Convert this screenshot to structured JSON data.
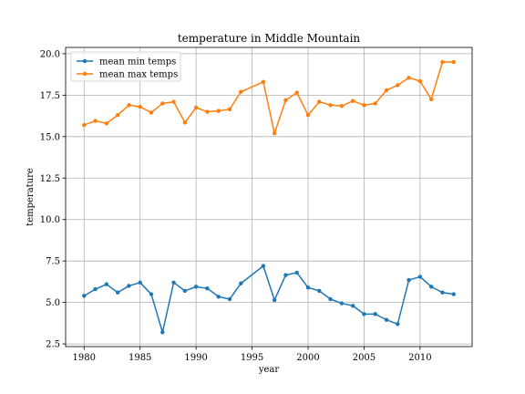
{
  "chart_data": {
    "type": "line",
    "title": "temperature in Middle Mountain",
    "xlabel": "year",
    "ylabel": "temperature",
    "xlim": [
      1978.35,
      2014.65
    ],
    "ylim": [
      2.34,
      20.38
    ],
    "xticks": [
      1980,
      1985,
      1990,
      1995,
      2000,
      2005,
      2010
    ],
    "yticks": [
      2.5,
      5.0,
      7.5,
      10.0,
      12.5,
      15.0,
      17.5,
      20.0
    ],
    "xtick_labels": [
      "1980",
      "1985",
      "1990",
      "1995",
      "2000",
      "2005",
      "2010"
    ],
    "ytick_labels": [
      "2.5",
      "5.0",
      "7.5",
      "10.0",
      "12.5",
      "15.0",
      "17.5",
      "20.0"
    ],
    "grid": true,
    "legend_position": "top-left",
    "series": [
      {
        "name": "mean min temps",
        "color": "#1f77b4",
        "points": [
          [
            1980,
            5.4
          ],
          [
            1981,
            5.8
          ],
          [
            1982,
            6.1
          ],
          [
            1983,
            5.6
          ],
          [
            1984,
            6.0
          ],
          [
            1985,
            6.2
          ],
          [
            1986,
            5.5
          ],
          [
            1987,
            3.2
          ],
          [
            1988,
            6.2
          ],
          [
            1989,
            5.7
          ],
          [
            1990,
            5.95
          ],
          [
            1991,
            5.85
          ],
          [
            1992,
            5.35
          ],
          [
            1993,
            5.2
          ],
          [
            1994,
            6.15
          ],
          [
            1996,
            7.2
          ],
          [
            1997,
            5.15
          ],
          [
            1998,
            6.65
          ],
          [
            1999,
            6.8
          ],
          [
            2000,
            5.9
          ],
          [
            2001,
            5.7
          ],
          [
            2002,
            5.2
          ],
          [
            2003,
            4.95
          ],
          [
            2004,
            4.8
          ],
          [
            2005,
            4.3
          ],
          [
            2006,
            4.3
          ],
          [
            2007,
            3.95
          ],
          [
            2008,
            3.7
          ],
          [
            2009,
            6.35
          ],
          [
            2010,
            6.55
          ],
          [
            2011,
            5.95
          ],
          [
            2012,
            5.6
          ],
          [
            2013,
            5.5
          ]
        ]
      },
      {
        "name": "mean max temps",
        "color": "#ff7f0e",
        "points": [
          [
            1980,
            15.7
          ],
          [
            1981,
            15.95
          ],
          [
            1982,
            15.8
          ],
          [
            1983,
            16.3
          ],
          [
            1984,
            16.9
          ],
          [
            1985,
            16.8
          ],
          [
            1986,
            16.45
          ],
          [
            1987,
            17.0
          ],
          [
            1988,
            17.1
          ],
          [
            1989,
            15.85
          ],
          [
            1990,
            16.75
          ],
          [
            1991,
            16.5
          ],
          [
            1992,
            16.55
          ],
          [
            1993,
            16.65
          ],
          [
            1994,
            17.7
          ],
          [
            1996,
            18.3
          ],
          [
            1997,
            15.2
          ],
          [
            1998,
            17.2
          ],
          [
            1999,
            17.65
          ],
          [
            2000,
            16.3
          ],
          [
            2001,
            17.1
          ],
          [
            2002,
            16.9
          ],
          [
            2003,
            16.85
          ],
          [
            2004,
            17.15
          ],
          [
            2005,
            16.9
          ],
          [
            2006,
            17.0
          ],
          [
            2007,
            17.8
          ],
          [
            2008,
            18.1
          ],
          [
            2009,
            18.55
          ],
          [
            2010,
            18.35
          ],
          [
            2011,
            17.25
          ],
          [
            2012,
            19.5
          ],
          [
            2013,
            19.5
          ]
        ]
      }
    ]
  }
}
